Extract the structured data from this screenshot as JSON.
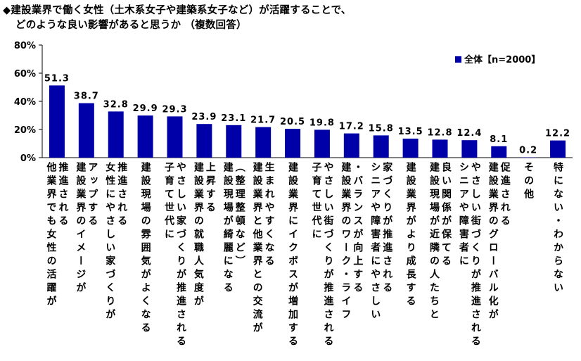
{
  "title_line1": "◆建設業界で働く女性（土木系女子や建築系女子など）が活躍することで、",
  "title_line2": "どのような良い影響があると思うか （複数回答）",
  "chart_data": {
    "type": "bar",
    "title": "◆建設業界で働く女性（土木系女子や建築系女子など）が活躍することで、どのような良い影響があると思うか （複数回答）",
    "ylim": [
      0,
      80
    ],
    "ytick_labels": [
      "0%",
      "20%",
      "40%",
      "60%",
      "80%"
    ],
    "grid": false,
    "legend_position": "top-right",
    "bar_color": "#0000a8",
    "categories": [
      [
        "推進される",
        "他業界でも女性の活躍が"
      ],
      [
        "アップする",
        "建設業界のイメージが"
      ],
      [
        "推進される",
        "女性にやさしい家づくりが"
      ],
      [
        "建設現場の雰囲気がよくなる"
      ],
      [
        "やさしい家づくりが推進される",
        "子育て世代に"
      ],
      [
        "上昇する",
        "建設業界の就職人気度が"
      ],
      [
        "（整理整頓など）",
        "建設現場が綺麗になる"
      ],
      [
        "生まれやすくなる",
        "建設業界と他業界との交流が"
      ],
      [
        "建設業界にイクボスが増加する"
      ],
      [
        "やさしい街づくりが推進される",
        "子育て世代に"
      ],
      [
        "・バランスが向上する",
        "建設業界のワーク・ライフ"
      ],
      [
        "家づくりが推進される",
        "シニアや障害者にやさしい"
      ],
      [
        "建設業界がより成長する"
      ],
      [
        "良い関係が保てる",
        "建設現場が近隣の人たちと"
      ],
      [
        "やさしい街づくりが推進される",
        "シニアや障害者に"
      ],
      [
        "促進される",
        "建設業界のグローバル化が"
      ],
      [
        "その他"
      ],
      [
        "特にない・わからない"
      ]
    ],
    "series": [
      {
        "name": "全体【n=2000】",
        "values": [
          51.3,
          38.7,
          32.8,
          29.9,
          29.3,
          23.9,
          23.1,
          21.7,
          20.5,
          19.8,
          17.2,
          15.8,
          13.5,
          12.8,
          12.4,
          8.1,
          0.2,
          12.2
        ],
        "labels": [
          "51.3",
          "38.7",
          "32.8",
          "29.9",
          "29.3",
          "23.9",
          "23.1",
          "21.7",
          "20.5",
          "19.8",
          "17.2",
          "15.8",
          "13.5",
          "12.8",
          "12.4",
          "8.1",
          "0.2",
          "12.2"
        ]
      }
    ]
  }
}
